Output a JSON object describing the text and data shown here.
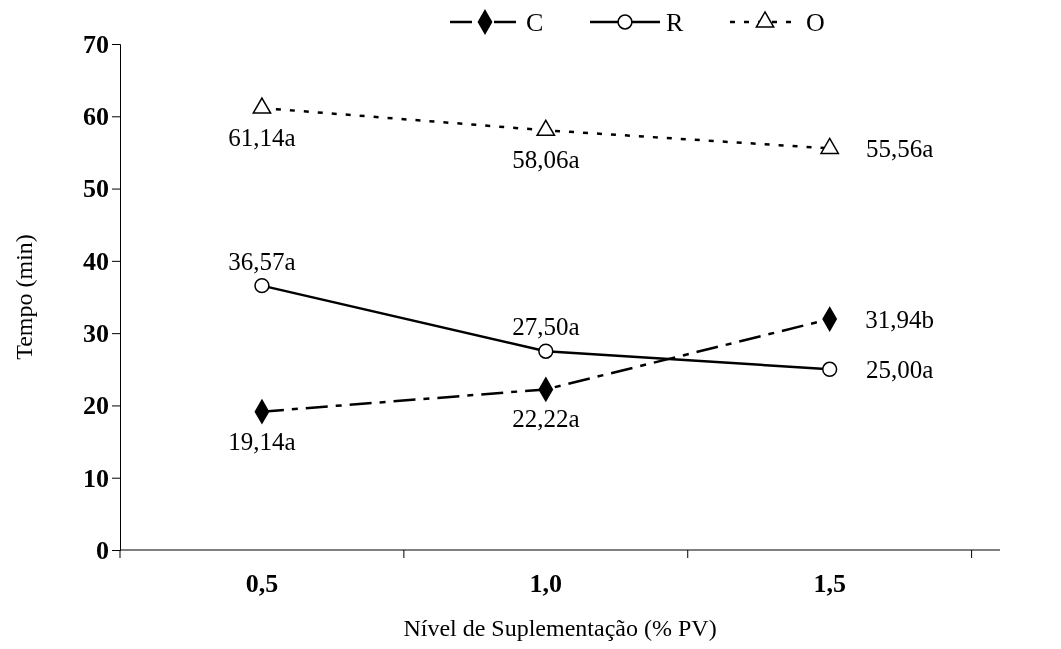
{
  "chart_data": {
    "type": "line",
    "xlabel": "Nível de Suplementação (% PV)",
    "ylabel": "Tempo (min)",
    "categories": [
      "0,5",
      "1,0",
      "1,5"
    ],
    "ylim": [
      0,
      70
    ],
    "yticks": [
      0,
      10,
      20,
      30,
      40,
      50,
      60,
      70
    ],
    "grid": false,
    "legend": "top",
    "series": [
      {
        "name": "C",
        "color": "#000000",
        "marker": "diamond",
        "line_style": "dashed",
        "values": [
          19.14,
          22.22,
          31.94
        ],
        "value_labels": [
          "19,14a",
          "22,22a",
          "31,94b"
        ]
      },
      {
        "name": "R",
        "color": "#000000",
        "marker": "circle",
        "line_style": "solid",
        "values": [
          36.57,
          27.5,
          25.0
        ],
        "value_labels": [
          "36,57a",
          "27,50a",
          "25,00a"
        ]
      },
      {
        "name": "O",
        "color": "#000000",
        "marker": "triangle",
        "line_style": "dotted",
        "values": [
          61.14,
          58.06,
          55.56
        ],
        "value_labels": [
          "61,14a",
          "58,06a",
          "55,56a"
        ]
      }
    ]
  }
}
